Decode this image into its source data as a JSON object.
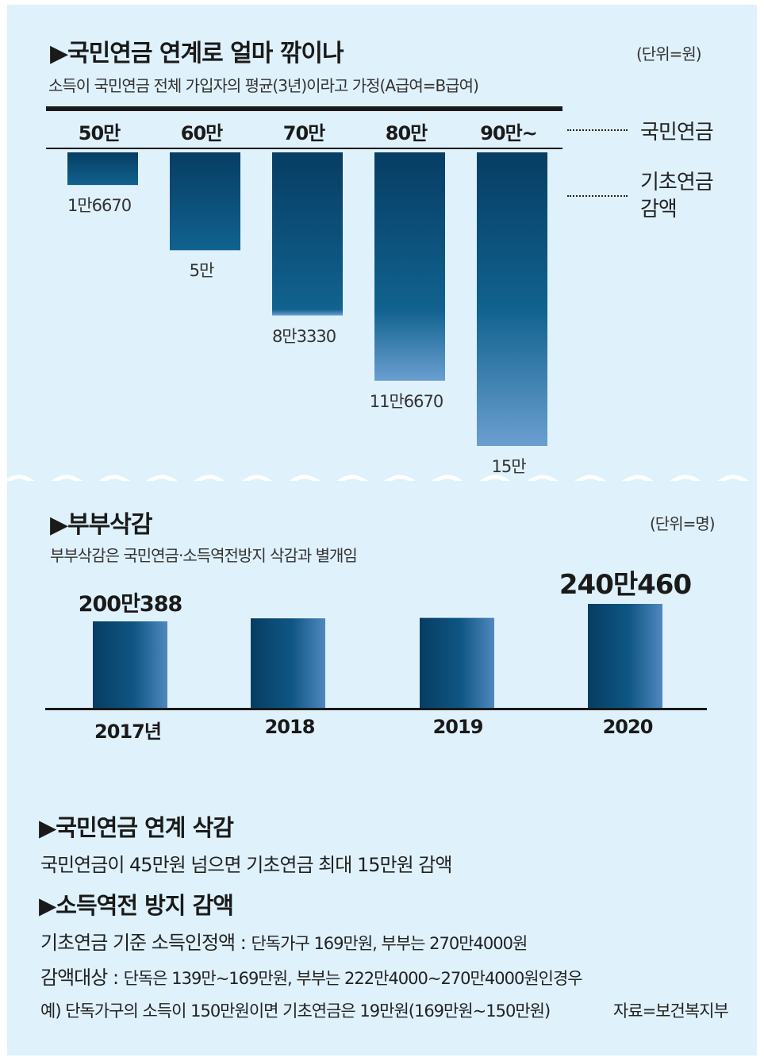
{
  "section1": {
    "title": "▶국민연금 연계로 얼마 깎이나",
    "unit": "(단위=원)",
    "subtitle": "소득이 국민연금 전체 가입자의 평균(3년)이라고 가정(A급여=B급여)",
    "legend_top": "국민연금",
    "legend_bottom_1": "기초연금",
    "legend_bottom_2": "감액"
  },
  "section2": {
    "title": "▶부부삭감",
    "unit": "(단위=명)",
    "subtitle": "부부삭감은 국민연금·소득역전방지 삭감과 별개임"
  },
  "section3": {
    "head1": "▶국민연금 연계 삭감",
    "line1": "국민연금이 45만원 넘으면 기초연금 최대 15만원 감액",
    "head2": "▶소득역전 방지 감액",
    "line2_label": "기초연금 기준 소득인정액 : ",
    "line2_detail": "단독가구 169만원, 부부는 270만4000원",
    "line3_label": "감액대상 : ",
    "line3_detail": "단독은 139만~169만원, 부부는 222만4000~270만4000원인경우",
    "line4": "예) 단독가구의 소득이 150만원이면 기초연금은 19만원(169만원~150만원)",
    "source": "자료=보건복지부"
  },
  "colors": {
    "panel_bg": "#dff1fb",
    "bar_dark": "#063d63",
    "bar_mid": "#11628f",
    "bar_light": "#5f97c9"
  },
  "chart_data": [
    {
      "type": "bar",
      "title": "▶국민연금 연계로 얼마 깎이나",
      "categories": [
        "50만",
        "60만",
        "70만",
        "80만",
        "90만~"
      ],
      "values": [
        16670,
        50000,
        83330,
        116670,
        150000
      ],
      "value_labels": [
        "1만6670",
        "5만",
        "8만3330",
        "11만6670",
        "15만"
      ],
      "ylabel": "기초연금 감액",
      "ylim": [
        0,
        150000
      ],
      "orientation": "downward"
    },
    {
      "type": "bar",
      "title": "▶부부삭감",
      "categories": [
        "2017년",
        "2018",
        "2019",
        "2020"
      ],
      "values": [
        2000388,
        2070000,
        2080000,
        2400460
      ],
      "value_labels": [
        "200만388",
        "",
        "",
        "240만460"
      ],
      "ylim": [
        0,
        2400460
      ]
    }
  ]
}
